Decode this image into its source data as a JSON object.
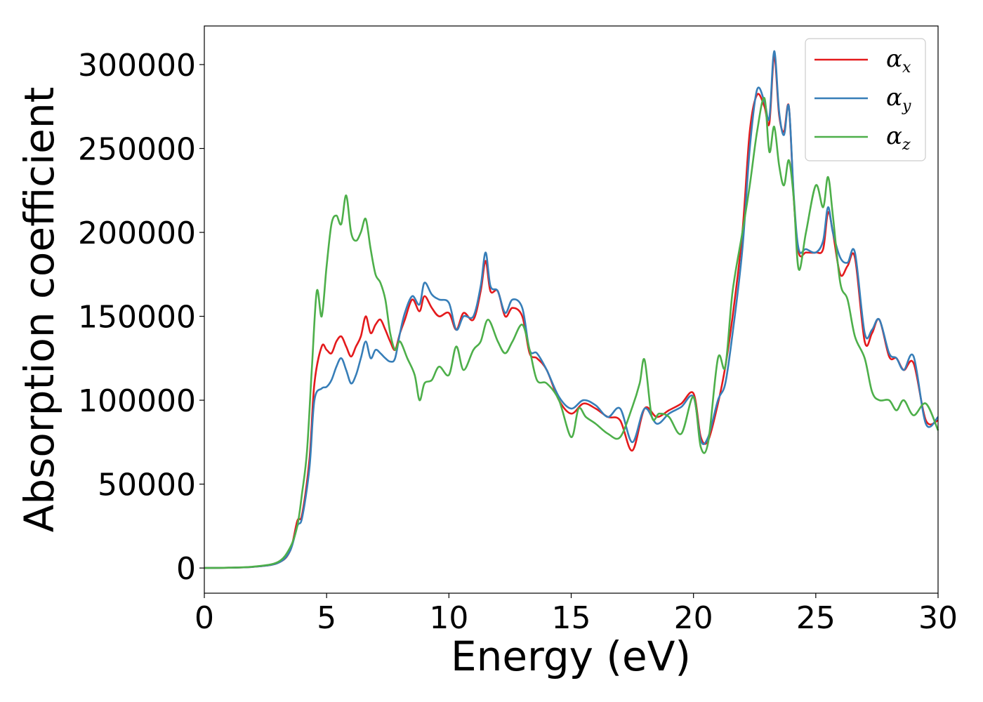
{
  "chart_data": {
    "type": "line",
    "xlabel": "Energy (eV)",
    "ylabel": "Absorption coefficient",
    "xlim": [
      0,
      30
    ],
    "ylim": [
      -15000,
      323000
    ],
    "xticks": [
      0,
      5,
      10,
      15,
      20,
      25,
      30
    ],
    "yticks": [
      0,
      50000,
      100000,
      150000,
      200000,
      250000,
      300000
    ],
    "grid": false,
    "legend_position": "top-right",
    "series": [
      {
        "name": "αx",
        "label_base": "α",
        "label_sub": "x",
        "color": "#e41a1c",
        "x": [
          0,
          1,
          2,
          3,
          3.5,
          3.8,
          4.0,
          4.3,
          4.5,
          4.8,
          5.0,
          5.2,
          5.4,
          5.6,
          5.8,
          6.0,
          6.2,
          6.4,
          6.6,
          6.8,
          7.0,
          7.2,
          7.4,
          7.6,
          7.8,
          8.0,
          8.2,
          8.5,
          8.8,
          9.0,
          9.3,
          9.6,
          10.0,
          10.3,
          10.6,
          11.0,
          11.3,
          11.5,
          11.7,
          12.0,
          12.3,
          12.6,
          13.0,
          13.3,
          13.6,
          14.0,
          14.5,
          15.0,
          15.5,
          16.0,
          16.5,
          17.0,
          17.5,
          18.0,
          18.5,
          19.0,
          19.5,
          20.0,
          20.3,
          20.6,
          21.0,
          21.3,
          21.6,
          22.0,
          22.3,
          22.6,
          22.9,
          23.1,
          23.3,
          23.5,
          23.7,
          23.9,
          24.1,
          24.3,
          24.6,
          25.0,
          25.3,
          25.5,
          25.7,
          26.0,
          26.3,
          26.6,
          27.0,
          27.3,
          27.6,
          28.0,
          28.3,
          28.6,
          29.0,
          29.5,
          30.0
        ],
        "y": [
          0,
          200,
          700,
          3000,
          10000,
          28000,
          32000,
          65000,
          110000,
          132000,
          130000,
          128000,
          135000,
          138000,
          132000,
          126000,
          132000,
          138000,
          150000,
          140000,
          145000,
          148000,
          142000,
          135000,
          130000,
          140000,
          148000,
          160000,
          153000,
          162000,
          155000,
          150000,
          152000,
          142000,
          152000,
          148000,
          165000,
          183000,
          165000,
          165000,
          150000,
          155000,
          150000,
          128000,
          125000,
          118000,
          100000,
          92000,
          98000,
          95000,
          90000,
          88000,
          70000,
          95000,
          90000,
          94000,
          98000,
          104000,
          78000,
          76000,
          98000,
          120000,
          150000,
          200000,
          260000,
          282000,
          275000,
          265000,
          305000,
          270000,
          260000,
          275000,
          220000,
          188000,
          188000,
          188000,
          190000,
          212000,
          200000,
          175000,
          180000,
          185000,
          135000,
          140000,
          148000,
          126000,
          125000,
          118000,
          122000,
          88000,
          88000
        ]
      },
      {
        "name": "αy",
        "label_base": "α",
        "label_sub": "y",
        "color": "#377eb8",
        "x": [
          0,
          1,
          2,
          3,
          3.5,
          3.8,
          4.0,
          4.3,
          4.5,
          4.8,
          5.0,
          5.2,
          5.4,
          5.6,
          5.8,
          6.0,
          6.2,
          6.4,
          6.6,
          6.8,
          7.0,
          7.2,
          7.4,
          7.6,
          7.8,
          8.0,
          8.2,
          8.5,
          8.8,
          9.0,
          9.3,
          9.6,
          10.0,
          10.3,
          10.6,
          11.0,
          11.3,
          11.5,
          11.7,
          12.0,
          12.3,
          12.6,
          13.0,
          13.3,
          13.6,
          14.0,
          14.5,
          15.0,
          15.5,
          16.0,
          16.5,
          17.0,
          17.5,
          18.0,
          18.5,
          19.0,
          19.5,
          20.0,
          20.3,
          20.6,
          21.0,
          21.3,
          21.6,
          22.0,
          22.3,
          22.6,
          22.9,
          23.1,
          23.3,
          23.5,
          23.7,
          23.9,
          24.1,
          24.3,
          24.6,
          25.0,
          25.3,
          25.5,
          25.7,
          26.0,
          26.3,
          26.6,
          27.0,
          27.3,
          27.6,
          28.0,
          28.3,
          28.6,
          29.0,
          29.5,
          30.0
        ],
        "y": [
          0,
          200,
          700,
          3000,
          10000,
          25000,
          30000,
          60000,
          100000,
          107000,
          108000,
          112000,
          120000,
          125000,
          118000,
          110000,
          115000,
          125000,
          135000,
          125000,
          130000,
          128000,
          125000,
          123000,
          125000,
          140000,
          152000,
          162000,
          157000,
          170000,
          163000,
          160000,
          158000,
          142000,
          150000,
          150000,
          168000,
          188000,
          168000,
          165000,
          152000,
          160000,
          155000,
          130000,
          128000,
          118000,
          102000,
          95000,
          100000,
          97000,
          90000,
          95000,
          75000,
          95000,
          86000,
          92000,
          96000,
          102000,
          76000,
          78000,
          100000,
          110000,
          140000,
          190000,
          250000,
          285000,
          278000,
          268000,
          308000,
          272000,
          258000,
          275000,
          222000,
          190000,
          190000,
          188000,
          195000,
          215000,
          200000,
          185000,
          182000,
          188000,
          140000,
          142000,
          148000,
          128000,
          125000,
          118000,
          126000,
          86000,
          90000
        ]
      },
      {
        "name": "αz",
        "label_base": "α",
        "label_sub": "z",
        "color": "#4daf4a",
        "x": [
          0,
          1,
          2,
          3,
          3.5,
          3.8,
          4.0,
          4.2,
          4.4,
          4.6,
          4.8,
          5.0,
          5.2,
          5.4,
          5.6,
          5.8,
          6.0,
          6.2,
          6.4,
          6.6,
          6.8,
          7.0,
          7.2,
          7.4,
          7.6,
          7.8,
          8.0,
          8.3,
          8.6,
          8.8,
          9.0,
          9.3,
          9.6,
          10.0,
          10.3,
          10.6,
          11.0,
          11.3,
          11.6,
          12.0,
          12.3,
          12.6,
          13.0,
          13.3,
          13.6,
          14.0,
          14.5,
          15.0,
          15.3,
          15.6,
          16.0,
          16.5,
          17.0,
          17.5,
          17.8,
          18.0,
          18.3,
          18.6,
          19.0,
          19.5,
          20.0,
          20.3,
          20.6,
          21.0,
          21.3,
          21.6,
          22.0,
          22.3,
          22.6,
          22.9,
          23.1,
          23.3,
          23.5,
          23.7,
          23.9,
          24.1,
          24.3,
          24.6,
          25.0,
          25.3,
          25.5,
          25.7,
          26.0,
          26.3,
          26.6,
          27.0,
          27.3,
          27.6,
          28.0,
          28.3,
          28.6,
          29.0,
          29.5,
          30.0
        ],
        "y": [
          0,
          200,
          800,
          3500,
          12000,
          25000,
          45000,
          70000,
          120000,
          165000,
          150000,
          180000,
          205000,
          210000,
          205000,
          222000,
          200000,
          195000,
          200000,
          208000,
          190000,
          175000,
          170000,
          160000,
          140000,
          130000,
          135000,
          125000,
          115000,
          100000,
          110000,
          112000,
          120000,
          115000,
          132000,
          118000,
          130000,
          135000,
          148000,
          135000,
          128000,
          135000,
          145000,
          130000,
          112000,
          110000,
          100000,
          78000,
          95000,
          90000,
          86000,
          80000,
          78000,
          96000,
          110000,
          124000,
          90000,
          92000,
          90000,
          80000,
          102000,
          72000,
          75000,
          125000,
          120000,
          165000,
          200000,
          228000,
          260000,
          280000,
          248000,
          263000,
          240000,
          228000,
          243000,
          220000,
          178000,
          200000,
          228000,
          215000,
          233000,
          210000,
          170000,
          160000,
          138000,
          125000,
          105000,
          100000,
          100000,
          94000,
          100000,
          91000,
          98000,
          82000
        ]
      }
    ]
  }
}
